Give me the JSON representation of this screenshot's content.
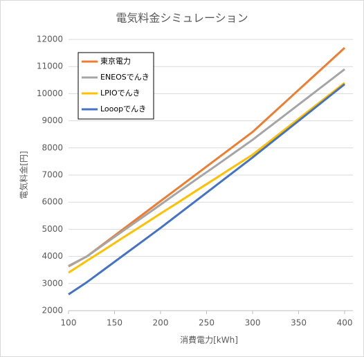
{
  "chart_data": {
    "type": "line",
    "title": "電気料金シミュレーション",
    "x_label": "消費電力[kWh]",
    "y_label": "電気料金[円]",
    "x": [
      100,
      120,
      140,
      160,
      180,
      200,
      220,
      240,
      260,
      280,
      300,
      320,
      340,
      360,
      380,
      400
    ],
    "series": [
      {
        "name": "東京電力",
        "color": "#ed7d31",
        "values": [
          3630,
          4000,
          4510,
          5020,
          5530,
          6040,
          6550,
          7060,
          7570,
          8080,
          8590,
          9210,
          9830,
          10450,
          11070,
          11690
        ]
      },
      {
        "name": "ENEOSでんき",
        "color": "#a5a5a5",
        "values": [
          3650,
          4000,
          4480,
          4960,
          5430,
          5910,
          6390,
          6870,
          7340,
          7820,
          8300,
          8820,
          9340,
          9860,
          10380,
          10900
        ]
      },
      {
        "name": "LPIOでんき",
        "color": "#ffc000",
        "values": [
          3400,
          3840,
          4270,
          4710,
          5140,
          5580,
          6010,
          6450,
          6880,
          7320,
          7750,
          8280,
          8810,
          9340,
          9870,
          10400
        ]
      },
      {
        "name": "Looopでんき",
        "color": "#4472c4",
        "values": [
          2600,
          3050,
          3550,
          4050,
          4550,
          5050,
          5570,
          6090,
          6610,
          7130,
          7650,
          8190,
          8730,
          9270,
          9810,
          10350
        ]
      }
    ],
    "xlim": [
      100,
      409
    ],
    "xticks": [
      100,
      150,
      200,
      250,
      300,
      350,
      400
    ],
    "ylim": [
      2000,
      12000
    ],
    "yticks": [
      2000,
      3000,
      4000,
      5000,
      6000,
      7000,
      8000,
      9000,
      10000,
      11000,
      12000
    ],
    "grid": true,
    "legend": "top-left"
  }
}
